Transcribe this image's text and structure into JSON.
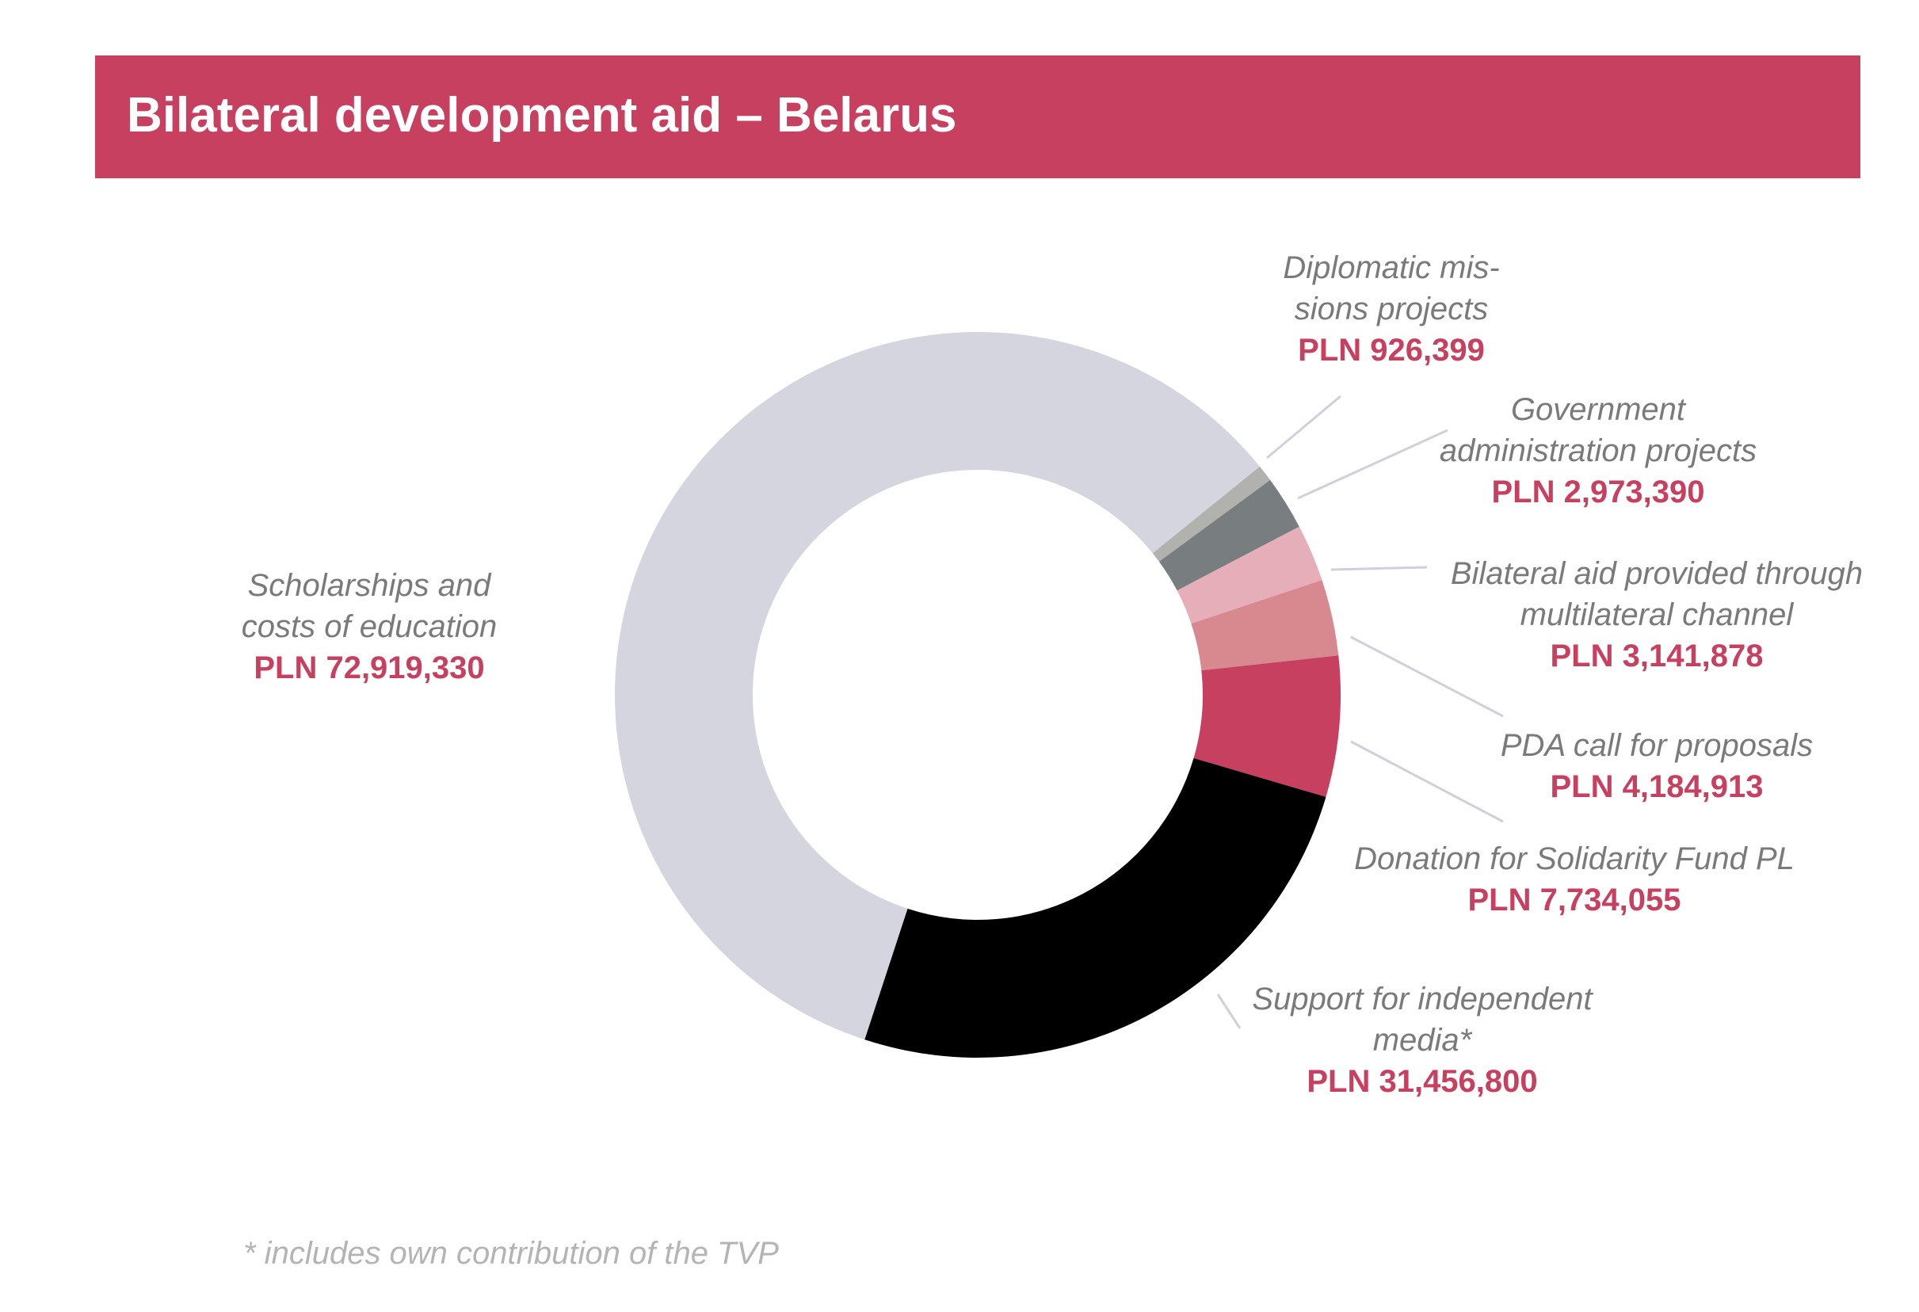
{
  "header": {
    "title": "Bilateral development aid – Belarus"
  },
  "chart_data": {
    "type": "pie",
    "variant": "donut",
    "title": "Bilateral development aid – Belarus",
    "currency": "PLN",
    "start_angle_deg": 51,
    "slices": [
      {
        "name": "Diplomatic missions projects",
        "lines": [
          "Diplomatic mis-",
          "sions projects"
        ],
        "value": 926399,
        "label": "PLN 926,399",
        "color": "#b1b1ae"
      },
      {
        "name": "Government administration projects",
        "lines": [
          "Government",
          "administration projects"
        ],
        "value": 2973390,
        "label": "PLN 2,973,390",
        "color": "#787d80"
      },
      {
        "name": "Bilateral aid provided through multilateral channel",
        "lines": [
          "Bilateral aid provided through",
          "multilateral channel"
        ],
        "value": 3141878,
        "label": "PLN 3,141,878",
        "color": "#e6aeb8"
      },
      {
        "name": "PDA call for proposals",
        "lines": [
          "PDA call for proposals"
        ],
        "value": 4184913,
        "label": "PLN 4,184,913",
        "color": "#d7898f"
      },
      {
        "name": "Donation for Solidarity Fund PL",
        "lines": [
          "Donation for Solidarity Fund PL"
        ],
        "value": 7734055,
        "label": "PLN 7,734,055",
        "color": "#c74060"
      },
      {
        "name": "Support for independent media*",
        "lines": [
          "Support for independent",
          "media*"
        ],
        "value": 31456800,
        "label": "PLN 31,456,800",
        "color": "#000000"
      },
      {
        "name": "Scholarships and costs of education",
        "lines": [
          "Scholarships and",
          "costs of education"
        ],
        "value": 72919330,
        "label": "PLN 72,919,330",
        "color": "#d5d5df"
      }
    ]
  },
  "footnote": "* includes own contribution of the TVP"
}
